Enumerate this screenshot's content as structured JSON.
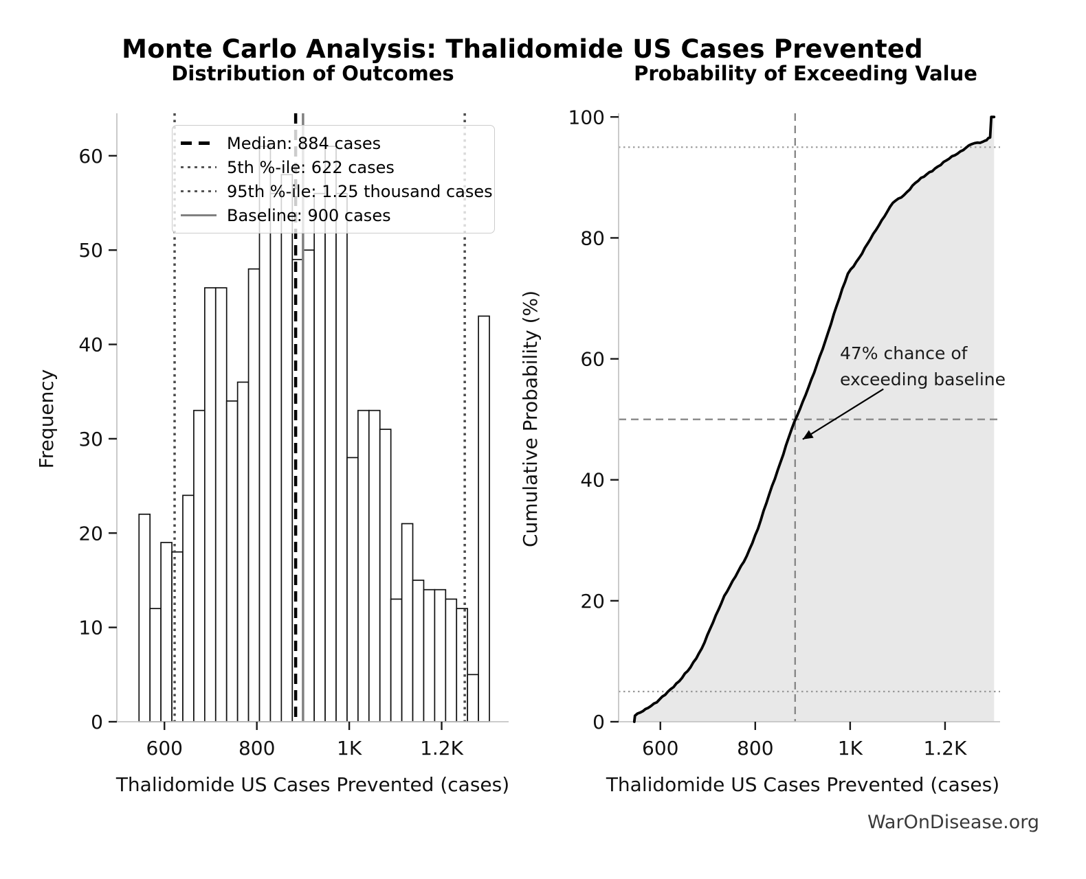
{
  "meta": {
    "title": "Monte Carlo Analysis: Thalidomide US Cases Prevented",
    "watermark": "WarOnDisease.org"
  },
  "legend": {
    "items": [
      {
        "label": "Median: 884 cases",
        "style": "dashed",
        "color": "#000000"
      },
      {
        "label": "5th %-ile: 622 cases",
        "style": "dotted",
        "color": "#555555"
      },
      {
        "label": "95th %-ile: 1.25 thousand cases",
        "style": "dotted",
        "color": "#555555"
      },
      {
        "label": "Baseline: 900 cases",
        "style": "solid",
        "color": "#808080"
      }
    ]
  },
  "right_annotation": {
    "line1": "47% chance of",
    "line2": "exceeding baseline"
  },
  "chart_data": [
    {
      "type": "bar",
      "title": "Distribution of Outcomes",
      "xlabel": "Thalidomide US Cases Prevented (cases)",
      "ylabel": "Frequency",
      "bin_start": 545,
      "bin_width": 23.7,
      "counts": [
        22,
        12,
        19,
        18,
        24,
        33,
        46,
        46,
        34,
        36,
        48,
        61,
        56,
        58,
        49,
        50,
        56,
        61,
        56,
        28,
        33,
        33,
        31,
        13,
        21,
        15,
        14,
        14,
        13,
        12,
        5,
        43
      ],
      "xlim": [
        497,
        1345
      ],
      "ylim": [
        0,
        64.5
      ],
      "x_ticks": [
        {
          "v": 600,
          "label": "600"
        },
        {
          "v": 800,
          "label": "800"
        },
        {
          "v": 1000,
          "label": "1K"
        },
        {
          "v": 1200,
          "label": "1.2K"
        }
      ],
      "y_ticks": [
        0,
        10,
        20,
        30,
        40,
        50,
        60
      ],
      "grid": false,
      "legend_position": "upper left",
      "bar_fill": "#ffffff",
      "bar_edge": "#111111",
      "ref_lines": [
        {
          "name": "median",
          "value": 884,
          "style": "dashed",
          "color": "#000000",
          "width": 4.5
        },
        {
          "name": "p5",
          "value": 622,
          "style": "dotted",
          "color": "#4a4a4a",
          "width": 3.5
        },
        {
          "name": "p95",
          "value": 1250,
          "style": "dotted",
          "color": "#4a4a4a",
          "width": 3.5
        },
        {
          "name": "baseline",
          "value": 900,
          "style": "solid",
          "color": "#808080",
          "width": 3.5
        }
      ]
    },
    {
      "type": "line",
      "title": "Probability of Exceeding Value",
      "xlabel": "Thalidomide US Cases Prevented (cases)",
      "ylabel": "Cumulative Probability (%)",
      "x": [
        545,
        546.5,
        568.7,
        592.4,
        616.1,
        639.8,
        663.5,
        687.2,
        710.9,
        734.6,
        758.3,
        782.0,
        805.7,
        829.4,
        853.1,
        876.8,
        900.5,
        924.2,
        947.9,
        971.6,
        995.3,
        1019.0,
        1042.7,
        1066.4,
        1090.1,
        1113.8,
        1137.5,
        1161.2,
        1184.9,
        1208.6,
        1232.3,
        1256.0,
        1279.7,
        1295.0,
        1297.5,
        1303.4
      ],
      "y": [
        0,
        1.0,
        2.1,
        3.2,
        5.0,
        6.7,
        9.0,
        12.1,
        16.4,
        20.8,
        24.0,
        27.4,
        31.9,
        37.6,
        42.9,
        48.4,
        53.0,
        57.7,
        63.0,
        68.8,
        74.1,
        76.7,
        79.8,
        82.9,
        85.8,
        87.1,
        89.1,
        90.5,
        91.8,
        93.1,
        94.3,
        95.5,
        95.9,
        96.6,
        100.0,
        100.0
      ],
      "xlim": [
        512,
        1316
      ],
      "ylim": [
        0,
        100.6
      ],
      "x_ticks": [
        {
          "v": 600,
          "label": "600"
        },
        {
          "v": 800,
          "label": "800"
        },
        {
          "v": 1000,
          "label": "1K"
        },
        {
          "v": 1200,
          "label": "1.2K"
        }
      ],
      "y_ticks": [
        0,
        20,
        40,
        60,
        80,
        100
      ],
      "grid": false,
      "dotted_levels": [
        5,
        95
      ],
      "crosshair": {
        "x": 884,
        "y": 50
      },
      "arrow": {
        "from": [
          1070,
          55.0
        ],
        "to": [
          900,
          46.7
        ]
      },
      "line_color": "#000000",
      "fill_color": "#e8e8e8",
      "area": "under-curve"
    }
  ]
}
